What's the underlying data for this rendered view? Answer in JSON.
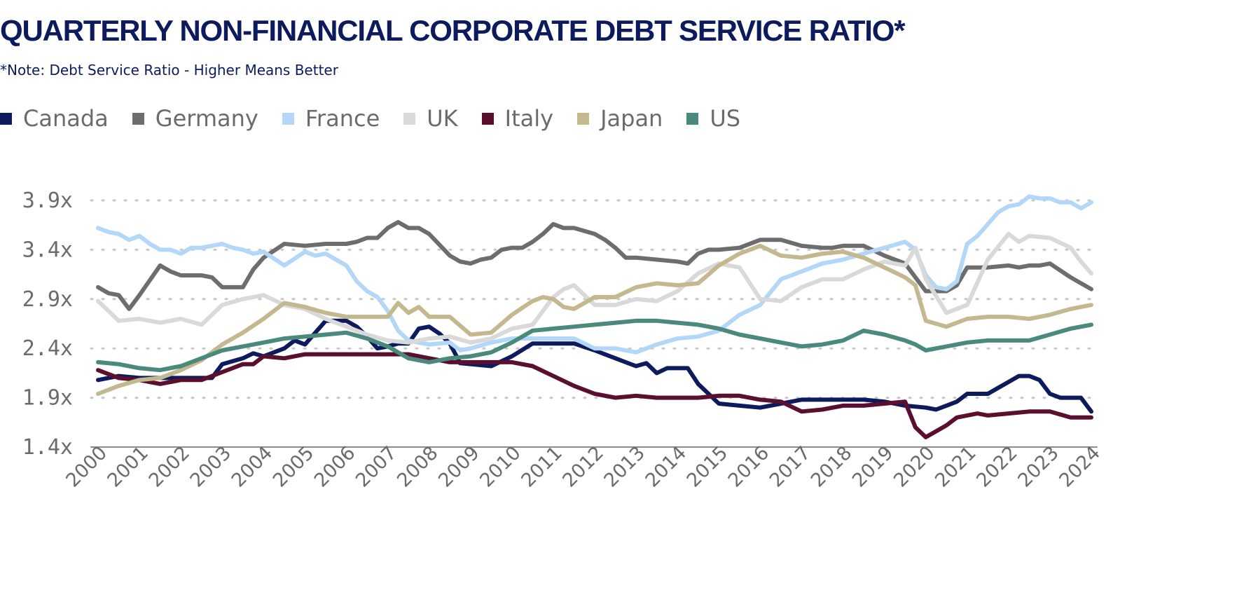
{
  "title": "QUARTERLY NON-FINANCIAL CORPORATE DEBT SERVICE RATIO*",
  "subtitle": "*Note: Debt Service Ratio - Higher Means Better",
  "chart_data": {
    "type": "line",
    "ylim": [
      1.4,
      4.0
    ],
    "xlim": [
      2000,
      2024
    ],
    "y_ticks": [
      1.4,
      1.9,
      2.4,
      2.9,
      3.4,
      3.9
    ],
    "y_tick_labels": [
      "1.4x",
      "1.9x",
      "2.4x",
      "2.9x",
      "3.4x",
      "3.9x"
    ],
    "x_ticks": [
      2000,
      2001,
      2002,
      2003,
      2004,
      2005,
      2006,
      2007,
      2008,
      2009,
      2010,
      2011,
      2012,
      2013,
      2014,
      2015,
      2016,
      2017,
      2018,
      2019,
      2020,
      2021,
      2022,
      2023,
      2024
    ],
    "x_tick_labels": [
      "2000",
      "2001",
      "2002",
      "2003",
      "2004",
      "2005",
      "2006",
      "2007",
      "2008",
      "2009",
      "2010",
      "2011",
      "2012",
      "2013",
      "2014",
      "2015",
      "2016",
      "2017",
      "2018",
      "2019",
      "2020",
      "2021",
      "2022",
      "2023",
      "2024"
    ],
    "grid": "horizontal-dotted",
    "legend": "top-left",
    "series": [
      {
        "name": "Canada",
        "color": "#0d1b5e",
        "x": [
          2000,
          2000.5,
          2001,
          2001.5,
          2002,
          2002.5,
          2002.75,
          2003,
          2003.25,
          2003.5,
          2003.75,
          2004,
          2004.5,
          2004.75,
          2005,
          2005.5,
          2005.75,
          2006,
          2006.25,
          2006.5,
          2006.75,
          2007,
          2007.25,
          2007.5,
          2007.75,
          2008,
          2008.25,
          2008.5,
          2008.75,
          2009,
          2009.5,
          2010,
          2010.5,
          2011,
          2011.5,
          2012,
          2012.5,
          2013,
          2013.25,
          2013.5,
          2013.75,
          2014,
          2014.25,
          2014.5,
          2015,
          2015.5,
          2016,
          2016.5,
          2017,
          2017.5,
          2018,
          2018.5,
          2019,
          2019.5,
          2020,
          2020.25,
          2020.5,
          2020.75,
          2021,
          2021.25,
          2021.5,
          2021.75,
          2022,
          2022.25,
          2022.5,
          2022.75,
          2023,
          2023.25,
          2023.5,
          2023.75,
          2024
        ],
        "y": [
          2.08,
          2.12,
          2.1,
          2.1,
          2.1,
          2.1,
          2.1,
          2.24,
          2.27,
          2.3,
          2.35,
          2.32,
          2.4,
          2.48,
          2.44,
          2.68,
          2.68,
          2.68,
          2.62,
          2.52,
          2.4,
          2.42,
          2.45,
          2.45,
          2.6,
          2.62,
          2.55,
          2.45,
          2.25,
          2.24,
          2.22,
          2.32,
          2.45,
          2.45,
          2.45,
          2.38,
          2.3,
          2.22,
          2.25,
          2.15,
          2.2,
          2.2,
          2.2,
          2.04,
          1.84,
          1.82,
          1.8,
          1.84,
          1.88,
          1.88,
          1.88,
          1.88,
          1.86,
          1.82,
          1.8,
          1.78,
          1.82,
          1.86,
          1.94,
          1.94,
          1.94,
          2.0,
          2.06,
          2.12,
          2.12,
          2.08,
          1.94,
          1.9,
          1.9,
          1.9,
          1.76
        ]
      },
      {
        "name": "Germany",
        "color": "#6d6d6d",
        "x": [
          2000,
          2000.25,
          2000.5,
          2000.75,
          2001,
          2001.5,
          2001.75,
          2002,
          2002.5,
          2002.75,
          2003,
          2003.25,
          2003.5,
          2003.75,
          2004,
          2004.5,
          2005,
          2005.5,
          2006,
          2006.25,
          2006.5,
          2006.75,
          2007,
          2007.25,
          2007.5,
          2007.75,
          2008,
          2008.5,
          2008.75,
          2009,
          2009.25,
          2009.5,
          2009.75,
          2010,
          2010.25,
          2010.5,
          2010.75,
          2011,
          2011.25,
          2011.5,
          2012,
          2012.25,
          2012.5,
          2012.75,
          2013,
          2013.5,
          2014,
          2014.25,
          2014.5,
          2014.75,
          2015,
          2015.5,
          2016,
          2016.5,
          2017,
          2017.5,
          2017.75,
          2018,
          2018.5,
          2019,
          2019.5,
          2019.75,
          2020,
          2020.25,
          2020.5,
          2020.75,
          2021,
          2021.5,
          2022,
          2022.25,
          2022.5,
          2022.75,
          2023,
          2023.5,
          2024
        ],
        "y": [
          3.02,
          2.96,
          2.94,
          2.8,
          2.94,
          3.24,
          3.18,
          3.14,
          3.14,
          3.12,
          3.02,
          3.02,
          3.02,
          3.2,
          3.32,
          3.46,
          3.44,
          3.46,
          3.46,
          3.48,
          3.52,
          3.52,
          3.62,
          3.68,
          3.62,
          3.62,
          3.56,
          3.34,
          3.28,
          3.26,
          3.3,
          3.32,
          3.4,
          3.42,
          3.42,
          3.48,
          3.56,
          3.66,
          3.62,
          3.62,
          3.56,
          3.5,
          3.42,
          3.32,
          3.32,
          3.3,
          3.28,
          3.26,
          3.36,
          3.4,
          3.4,
          3.42,
          3.5,
          3.5,
          3.44,
          3.42,
          3.42,
          3.44,
          3.44,
          3.34,
          3.26,
          3.12,
          2.98,
          2.98,
          2.98,
          3.04,
          3.22,
          3.22,
          3.24,
          3.22,
          3.24,
          3.24,
          3.26,
          3.12,
          3.0
        ]
      },
      {
        "name": "France",
        "color": "#b3d7f8",
        "x": [
          2000,
          2000.25,
          2000.5,
          2000.75,
          2001,
          2001.25,
          2001.5,
          2001.75,
          2002,
          2002.25,
          2002.5,
          2002.75,
          2003,
          2003.25,
          2003.5,
          2003.75,
          2004,
          2004.5,
          2005,
          2005.25,
          2005.5,
          2005.75,
          2006,
          2006.25,
          2006.5,
          2006.75,
          2007,
          2007.25,
          2007.5,
          2007.75,
          2008,
          2008.5,
          2008.75,
          2009,
          2009.5,
          2010,
          2010.5,
          2011,
          2011.5,
          2012,
          2012.5,
          2013,
          2013.5,
          2014,
          2014.5,
          2015,
          2015.5,
          2016,
          2016.5,
          2017,
          2017.5,
          2018,
          2018.5,
          2019,
          2019.5,
          2019.75,
          2020,
          2020.25,
          2020.5,
          2020.75,
          2021,
          2021.25,
          2021.5,
          2021.75,
          2022,
          2022.25,
          2022.5,
          2022.75,
          2023,
          2023.25,
          2023.5,
          2023.75,
          2024
        ],
        "y": [
          3.62,
          3.58,
          3.56,
          3.5,
          3.54,
          3.46,
          3.4,
          3.4,
          3.36,
          3.42,
          3.42,
          3.44,
          3.46,
          3.42,
          3.4,
          3.36,
          3.38,
          3.24,
          3.38,
          3.34,
          3.36,
          3.3,
          3.24,
          3.08,
          2.98,
          2.92,
          2.78,
          2.58,
          2.48,
          2.46,
          2.44,
          2.46,
          2.38,
          2.4,
          2.46,
          2.5,
          2.5,
          2.5,
          2.5,
          2.4,
          2.4,
          2.36,
          2.44,
          2.5,
          2.52,
          2.58,
          2.74,
          2.84,
          3.1,
          3.18,
          3.26,
          3.3,
          3.36,
          3.42,
          3.48,
          3.4,
          3.14,
          3.02,
          3.0,
          3.08,
          3.46,
          3.54,
          3.66,
          3.78,
          3.84,
          3.86,
          3.94,
          3.92,
          3.92,
          3.88,
          3.88,
          3.82,
          3.88
        ]
      },
      {
        "name": "UK",
        "color": "#d9d9d9",
        "x": [
          2000,
          2000.5,
          2001,
          2001.5,
          2002,
          2002.5,
          2003,
          2003.5,
          2004,
          2004.5,
          2005,
          2005.5,
          2006,
          2006.5,
          2007,
          2007.5,
          2008,
          2008.5,
          2009,
          2009.5,
          2010,
          2010.5,
          2011,
          2011.25,
          2011.5,
          2012,
          2012.5,
          2013,
          2013.5,
          2014,
          2014.5,
          2015,
          2015.5,
          2016,
          2016.5,
          2017,
          2017.5,
          2018,
          2018.5,
          2019,
          2019.5,
          2019.75,
          2020,
          2020.5,
          2021,
          2021.5,
          2022,
          2022.25,
          2022.5,
          2023,
          2023.5,
          2023.75,
          2024
        ],
        "y": [
          2.88,
          2.68,
          2.7,
          2.66,
          2.7,
          2.64,
          2.84,
          2.9,
          2.94,
          2.84,
          2.8,
          2.7,
          2.62,
          2.54,
          2.48,
          2.46,
          2.5,
          2.52,
          2.46,
          2.5,
          2.6,
          2.64,
          2.92,
          3.0,
          3.04,
          2.84,
          2.84,
          2.9,
          2.88,
          2.98,
          3.16,
          3.26,
          3.22,
          2.9,
          2.88,
          3.02,
          3.1,
          3.1,
          3.2,
          3.28,
          3.24,
          3.42,
          3.1,
          2.76,
          2.84,
          3.3,
          3.56,
          3.48,
          3.54,
          3.52,
          3.42,
          3.28,
          3.16
        ]
      },
      {
        "name": "Italy",
        "color": "#5a0f2e",
        "x": [
          2000,
          2000.5,
          2001,
          2001.5,
          2002,
          2002.5,
          2003,
          2003.5,
          2003.75,
          2004,
          2004.5,
          2005,
          2005.25,
          2005.5,
          2006,
          2006.5,
          2007,
          2007.5,
          2008,
          2008.5,
          2009,
          2009.5,
          2010,
          2010.5,
          2011,
          2011.5,
          2012,
          2012.5,
          2013,
          2013.5,
          2014,
          2014.5,
          2015,
          2015.5,
          2016,
          2016.5,
          2017,
          2017.5,
          2018,
          2018.5,
          2019,
          2019.5,
          2019.75,
          2020,
          2020.25,
          2020.5,
          2020.75,
          2021,
          2021.25,
          2021.5,
          2022,
          2022.5,
          2023,
          2023.5,
          2024
        ],
        "y": [
          2.18,
          2.1,
          2.08,
          2.04,
          2.08,
          2.08,
          2.16,
          2.24,
          2.24,
          2.32,
          2.3,
          2.34,
          2.34,
          2.34,
          2.34,
          2.34,
          2.34,
          2.34,
          2.3,
          2.26,
          2.26,
          2.26,
          2.26,
          2.22,
          2.12,
          2.02,
          1.94,
          1.9,
          1.92,
          1.9,
          1.9,
          1.9,
          1.92,
          1.92,
          1.88,
          1.86,
          1.76,
          1.78,
          1.82,
          1.82,
          1.84,
          1.86,
          1.6,
          1.5,
          1.56,
          1.62,
          1.7,
          1.72,
          1.74,
          1.72,
          1.74,
          1.76,
          1.76,
          1.7,
          1.7
        ]
      },
      {
        "name": "Japan",
        "color": "#c4b88e",
        "x": [
          2000,
          2000.5,
          2001,
          2001.5,
          2002,
          2002.5,
          2003,
          2003.5,
          2004,
          2004.5,
          2005,
          2005.5,
          2006,
          2006.5,
          2006.75,
          2007,
          2007.25,
          2007.5,
          2007.75,
          2008,
          2008.5,
          2009,
          2009.5,
          2010,
          2010.5,
          2010.75,
          2011,
          2011.25,
          2011.5,
          2012,
          2012.5,
          2013,
          2013.5,
          2014,
          2014.5,
          2015,
          2015.5,
          2016,
          2016.5,
          2017,
          2017.5,
          2018,
          2018.5,
          2019,
          2019.5,
          2019.75,
          2020,
          2020.5,
          2021,
          2021.5,
          2022,
          2022.5,
          2023,
          2023.5,
          2024
        ],
        "y": [
          1.94,
          2.02,
          2.08,
          2.1,
          2.18,
          2.28,
          2.44,
          2.56,
          2.7,
          2.86,
          2.82,
          2.76,
          2.72,
          2.72,
          2.72,
          2.72,
          2.86,
          2.76,
          2.82,
          2.72,
          2.72,
          2.54,
          2.56,
          2.74,
          2.88,
          2.92,
          2.9,
          2.82,
          2.8,
          2.92,
          2.92,
          3.02,
          3.06,
          3.04,
          3.06,
          3.24,
          3.36,
          3.44,
          3.34,
          3.32,
          3.36,
          3.38,
          3.32,
          3.22,
          3.12,
          3.04,
          2.68,
          2.62,
          2.7,
          2.72,
          2.72,
          2.7,
          2.74,
          2.8,
          2.84
        ]
      },
      {
        "name": "US",
        "color": "#4a8a7d",
        "x": [
          2000,
          2000.5,
          2001,
          2001.5,
          2002,
          2002.5,
          2003,
          2003.5,
          2004,
          2004.5,
          2005,
          2005.5,
          2006,
          2006.5,
          2007,
          2007.5,
          2008,
          2008.5,
          2009,
          2009.5,
          2010,
          2010.5,
          2011,
          2011.5,
          2012,
          2012.5,
          2013,
          2013.5,
          2014,
          2014.5,
          2015,
          2015.5,
          2016,
          2016.5,
          2017,
          2017.5,
          2018,
          2018.5,
          2019,
          2019.5,
          2019.75,
          2020,
          2020.5,
          2021,
          2021.5,
          2022,
          2022.5,
          2023,
          2023.5,
          2024
        ],
        "y": [
          2.26,
          2.24,
          2.2,
          2.18,
          2.22,
          2.3,
          2.38,
          2.42,
          2.46,
          2.5,
          2.52,
          2.54,
          2.56,
          2.5,
          2.42,
          2.3,
          2.26,
          2.3,
          2.32,
          2.36,
          2.46,
          2.58,
          2.6,
          2.62,
          2.64,
          2.66,
          2.68,
          2.68,
          2.66,
          2.64,
          2.6,
          2.54,
          2.5,
          2.46,
          2.42,
          2.44,
          2.48,
          2.58,
          2.54,
          2.48,
          2.44,
          2.38,
          2.42,
          2.46,
          2.48,
          2.48,
          2.48,
          2.54,
          2.6,
          2.64
        ]
      }
    ]
  }
}
